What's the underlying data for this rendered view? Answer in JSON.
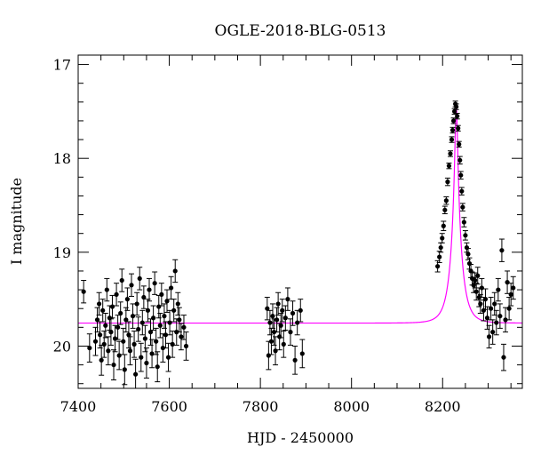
{
  "chart_data": {
    "type": "scatter",
    "title": "OGLE-2018-BLG-0513",
    "xlabel": "HJD - 2450000",
    "ylabel": "I magnitude",
    "xlim": [
      7400,
      8375
    ],
    "ylim": [
      20.45,
      16.9
    ],
    "y_inverted": true,
    "grid": false,
    "x_ticks": [
      7400,
      7600,
      7800,
      8000,
      8200
    ],
    "y_ticks": [
      17,
      18,
      19,
      20
    ],
    "model_color": "#ff00ff",
    "point_color": "#000000",
    "series": [
      {
        "type": "scatter_errorbars",
        "points": [
          [
            7412,
            19.42,
            0.12
          ],
          [
            7425,
            20.02,
            0.15
          ],
          [
            7438,
            19.95,
            0.15
          ],
          [
            7442,
            19.72,
            0.13
          ],
          [
            7446,
            19.55,
            0.12
          ],
          [
            7448,
            19.88,
            0.14
          ],
          [
            7451,
            20.15,
            0.16
          ],
          [
            7454,
            19.62,
            0.12
          ],
          [
            7457,
            19.98,
            0.14
          ],
          [
            7460,
            19.78,
            0.13
          ],
          [
            7463,
            19.4,
            0.12
          ],
          [
            7466,
            20.05,
            0.15
          ],
          [
            7469,
            19.7,
            0.13
          ],
          [
            7472,
            19.85,
            0.14
          ],
          [
            7475,
            19.58,
            0.12
          ],
          [
            7478,
            20.2,
            0.16
          ],
          [
            7481,
            19.92,
            0.14
          ],
          [
            7484,
            19.45,
            0.12
          ],
          [
            7487,
            19.8,
            0.13
          ],
          [
            7490,
            20.1,
            0.15
          ],
          [
            7493,
            19.65,
            0.12
          ],
          [
            7496,
            19.3,
            0.12
          ],
          [
            7499,
            19.95,
            0.14
          ],
          [
            7502,
            20.25,
            0.16
          ],
          [
            7505,
            19.72,
            0.13
          ],
          [
            7508,
            19.5,
            0.12
          ],
          [
            7511,
            19.88,
            0.14
          ],
          [
            7514,
            20.05,
            0.15
          ],
          [
            7517,
            19.35,
            0.12
          ],
          [
            7520,
            19.68,
            0.13
          ],
          [
            7523,
            19.98,
            0.14
          ],
          [
            7526,
            20.3,
            0.16
          ],
          [
            7529,
            19.55,
            0.12
          ],
          [
            7532,
            19.82,
            0.13
          ],
          [
            7535,
            19.28,
            0.12
          ],
          [
            7538,
            20.12,
            0.15
          ],
          [
            7541,
            19.75,
            0.13
          ],
          [
            7544,
            19.48,
            0.12
          ],
          [
            7547,
            19.92,
            0.14
          ],
          [
            7550,
            20.18,
            0.16
          ],
          [
            7553,
            19.62,
            0.12
          ],
          [
            7556,
            19.4,
            0.12
          ],
          [
            7559,
            19.85,
            0.14
          ],
          [
            7562,
            20.08,
            0.15
          ],
          [
            7565,
            19.7,
            0.13
          ],
          [
            7568,
            19.33,
            0.12
          ],
          [
            7571,
            19.95,
            0.14
          ],
          [
            7574,
            20.22,
            0.16
          ],
          [
            7577,
            19.58,
            0.12
          ],
          [
            7580,
            19.78,
            0.13
          ],
          [
            7583,
            19.45,
            0.12
          ],
          [
            7586,
            20.02,
            0.15
          ],
          [
            7589,
            19.68,
            0.13
          ],
          [
            7592,
            19.88,
            0.14
          ],
          [
            7595,
            19.52,
            0.12
          ],
          [
            7598,
            20.12,
            0.15
          ],
          [
            7601,
            19.75,
            0.13
          ],
          [
            7604,
            19.38,
            0.12
          ],
          [
            7607,
            19.98,
            0.14
          ],
          [
            7610,
            19.62,
            0.12
          ],
          [
            7613,
            19.2,
            0.12
          ],
          [
            7616,
            19.85,
            0.14
          ],
          [
            7619,
            19.55,
            0.12
          ],
          [
            7622,
            19.72,
            0.13
          ],
          [
            7626,
            19.9,
            0.14
          ],
          [
            7632,
            19.8,
            0.13
          ],
          [
            7637,
            20.0,
            0.15
          ],
          [
            7815,
            19.6,
            0.12
          ],
          [
            7818,
            20.1,
            0.15
          ],
          [
            7821,
            19.75,
            0.13
          ],
          [
            7824,
            19.95,
            0.14
          ],
          [
            7827,
            19.68,
            0.13
          ],
          [
            7830,
            19.85,
            0.14
          ],
          [
            7833,
            20.05,
            0.15
          ],
          [
            7836,
            19.72,
            0.13
          ],
          [
            7839,
            19.55,
            0.12
          ],
          [
            7842,
            19.9,
            0.14
          ],
          [
            7845,
            19.78,
            0.13
          ],
          [
            7848,
            19.62,
            0.12
          ],
          [
            7851,
            19.98,
            0.14
          ],
          [
            7855,
            19.7,
            0.13
          ],
          [
            7860,
            19.5,
            0.12
          ],
          [
            7866,
            19.85,
            0.14
          ],
          [
            7871,
            19.65,
            0.13
          ],
          [
            7876,
            20.15,
            0.15
          ],
          [
            7881,
            19.75,
            0.13
          ],
          [
            7888,
            19.62,
            0.12
          ],
          [
            7892,
            20.08,
            0.15
          ],
          [
            8189,
            19.15,
            0.06
          ],
          [
            8193,
            19.05,
            0.06
          ],
          [
            8196,
            18.95,
            0.05
          ],
          [
            8199,
            18.85,
            0.05
          ],
          [
            8202,
            18.72,
            0.05
          ],
          [
            8205,
            18.55,
            0.04
          ],
          [
            8208,
            18.45,
            0.04
          ],
          [
            8211,
            18.25,
            0.04
          ],
          [
            8214,
            18.08,
            0.03
          ],
          [
            8217,
            17.95,
            0.03
          ],
          [
            8220,
            17.8,
            0.03
          ],
          [
            8222,
            17.7,
            0.03
          ],
          [
            8224,
            17.6,
            0.03
          ],
          [
            8226,
            17.5,
            0.03
          ],
          [
            8228,
            17.42,
            0.03
          ],
          [
            8230,
            17.45,
            0.03
          ],
          [
            8232,
            17.55,
            0.03
          ],
          [
            8234,
            17.68,
            0.03
          ],
          [
            8236,
            17.85,
            0.03
          ],
          [
            8238,
            18.02,
            0.04
          ],
          [
            8240,
            18.18,
            0.04
          ],
          [
            8242,
            18.35,
            0.04
          ],
          [
            8244,
            18.52,
            0.04
          ],
          [
            8247,
            18.68,
            0.05
          ],
          [
            8250,
            18.82,
            0.05
          ],
          [
            8253,
            18.95,
            0.05
          ],
          [
            8256,
            19.02,
            0.06
          ],
          [
            8259,
            19.12,
            0.06
          ],
          [
            8262,
            19.2,
            0.07
          ],
          [
            8265,
            19.28,
            0.07
          ],
          [
            8268,
            19.35,
            0.08
          ],
          [
            8271,
            19.3,
            0.08
          ],
          [
            8274,
            19.42,
            0.09
          ],
          [
            8277,
            19.25,
            0.09
          ],
          [
            8280,
            19.48,
            0.1
          ],
          [
            8283,
            19.55,
            0.1
          ],
          [
            8286,
            19.38,
            0.1
          ],
          [
            8290,
            19.62,
            0.11
          ],
          [
            8294,
            19.5,
            0.11
          ],
          [
            8298,
            19.7,
            0.12
          ],
          [
            8302,
            19.9,
            0.12
          ],
          [
            8306,
            19.6,
            0.12
          ],
          [
            8310,
            19.85,
            0.13
          ],
          [
            8314,
            19.55,
            0.12
          ],
          [
            8318,
            19.75,
            0.13
          ],
          [
            8322,
            19.4,
            0.12
          ],
          [
            8326,
            19.68,
            0.13
          ],
          [
            8330,
            18.98,
            0.12
          ],
          [
            8334,
            20.12,
            0.14
          ],
          [
            8338,
            19.72,
            0.13
          ],
          [
            8342,
            19.32,
            0.12
          ],
          [
            8346,
            19.6,
            0.12
          ],
          [
            8350,
            19.45,
            0.12
          ],
          [
            8355,
            19.38,
            0.12
          ]
        ]
      },
      {
        "type": "model_curve",
        "baseline": 19.755,
        "t0": 8230,
        "tE": 22,
        "u0": 0.12
      }
    ]
  }
}
